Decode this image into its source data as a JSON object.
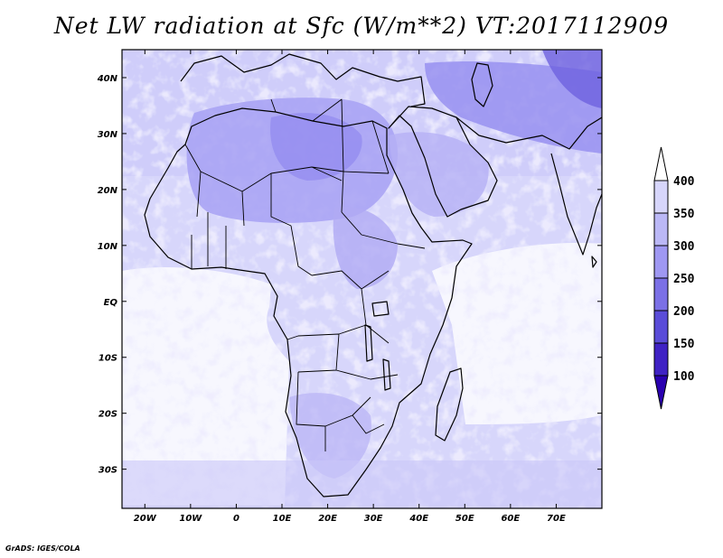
{
  "title": "Net LW radiation at Sfc (W/m**2) VT:2017112909",
  "credit": "GrADS: IGES/COLA",
  "map": {
    "lon_range": [
      -25,
      80
    ],
    "lat_range": [
      -37,
      45
    ],
    "x_ticks": [
      "20W",
      "10W",
      "0",
      "10E",
      "20E",
      "30E",
      "40E",
      "50E",
      "60E",
      "70E"
    ],
    "y_ticks": [
      "40N",
      "30N",
      "20N",
      "10N",
      "EQ",
      "10S",
      "20S",
      "30S"
    ]
  },
  "colorbar": {
    "labels": [
      "400",
      "350",
      "300",
      "250",
      "200",
      "150",
      "100"
    ],
    "colors": [
      "#ffffff",
      "#d7d6fb",
      "#bbb8f6",
      "#9f98f2",
      "#7b70e6",
      "#5a4cd8",
      "#3f22c4",
      "#2a00b0"
    ],
    "extend": "both"
  }
}
